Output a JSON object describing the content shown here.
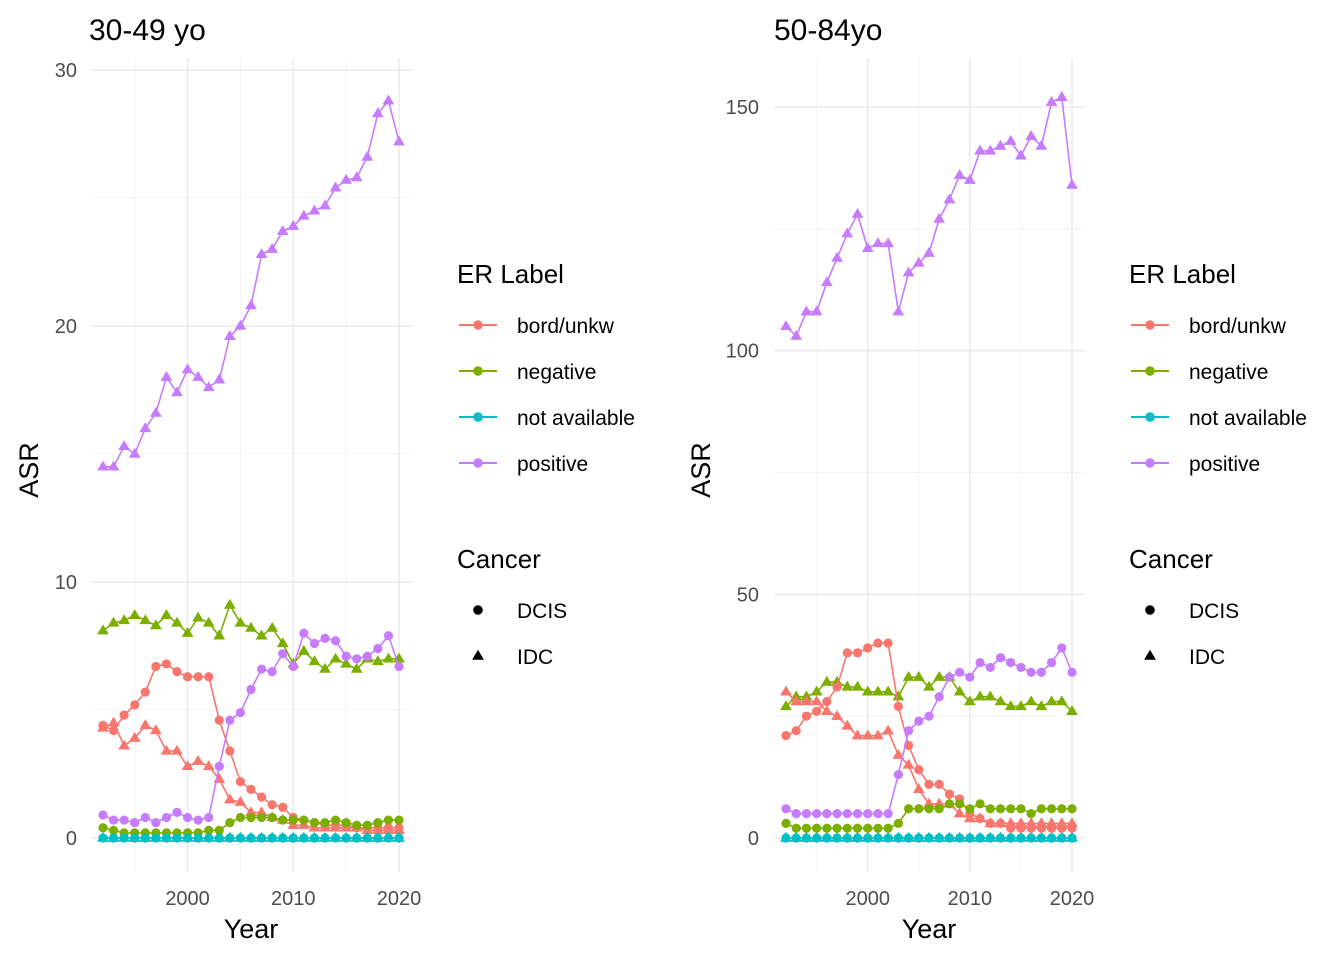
{
  "colors": {
    "bord/unkw": "#F8766D",
    "negative": "#7CAE00",
    "not available": "#00BFC4",
    "positive": "#C77CFF"
  },
  "legend": {
    "er_title": "ER Label",
    "er_items": [
      "bord/unkw",
      "negative",
      "not available",
      "positive"
    ],
    "cancer_title": "Cancer",
    "cancer_items": [
      {
        "label": "DCIS",
        "shape": "circle"
      },
      {
        "label": "IDC",
        "shape": "triangle"
      }
    ]
  },
  "chart_data": [
    {
      "type": "line",
      "title": "30-49 yo",
      "xlabel": "Year",
      "ylabel": "ASR",
      "xlim": [
        1992,
        2020
      ],
      "ylim": [
        0,
        30
      ],
      "xticks": [
        2000,
        2010,
        2020
      ],
      "yticks": [
        0,
        10,
        20,
        30
      ],
      "x": [
        1992,
        1993,
        1994,
        1995,
        1996,
        1997,
        1998,
        1999,
        2000,
        2001,
        2002,
        2003,
        2004,
        2005,
        2006,
        2007,
        2008,
        2009,
        2010,
        2011,
        2012,
        2013,
        2014,
        2015,
        2016,
        2017,
        2018,
        2019,
        2020
      ],
      "series": [
        {
          "er": "positive",
          "cancer": "IDC",
          "values": [
            14.5,
            14.5,
            15.3,
            15.0,
            16.0,
            16.6,
            18.0,
            17.4,
            18.3,
            18.0,
            17.6,
            17.9,
            19.6,
            20.0,
            20.8,
            22.8,
            23.0,
            23.7,
            23.9,
            24.3,
            24.5,
            24.7,
            25.4,
            25.7,
            25.8,
            26.6,
            28.3,
            28.8,
            27.2
          ]
        },
        {
          "er": "negative",
          "cancer": "IDC",
          "values": [
            8.1,
            8.4,
            8.5,
            8.7,
            8.5,
            8.3,
            8.7,
            8.4,
            8.0,
            8.6,
            8.4,
            7.9,
            9.1,
            8.4,
            8.2,
            7.9,
            8.2,
            7.6,
            6.8,
            7.3,
            6.9,
            6.6,
            7.0,
            6.8,
            6.6,
            7.0,
            6.9,
            7.0,
            7.0
          ]
        },
        {
          "er": "bord/unkw",
          "cancer": "IDC",
          "values": [
            4.3,
            4.5,
            3.6,
            3.9,
            4.4,
            4.2,
            3.4,
            3.4,
            2.8,
            3.0,
            2.8,
            2.3,
            1.5,
            1.4,
            1.0,
            1.0,
            0.8,
            0.7,
            0.5,
            0.5,
            0.4,
            0.4,
            0.4,
            0.4,
            0.4,
            0.3,
            0.3,
            0.3,
            0.3
          ]
        },
        {
          "er": "not available",
          "cancer": "IDC",
          "values": [
            0,
            0,
            0,
            0,
            0,
            0,
            0,
            0,
            0,
            0,
            0,
            0,
            0,
            0,
            0,
            0,
            0,
            0,
            0,
            0,
            0,
            0,
            0,
            0,
            0,
            0,
            0,
            0,
            0
          ]
        },
        {
          "er": "bord/unkw",
          "cancer": "DCIS",
          "values": [
            4.4,
            4.2,
            4.8,
            5.2,
            5.7,
            6.7,
            6.8,
            6.5,
            6.3,
            6.3,
            6.3,
            4.6,
            3.4,
            2.2,
            1.9,
            1.6,
            1.3,
            1.2,
            0.8,
            0.7,
            0.6,
            0.5,
            0.5,
            0.5,
            0.4,
            0.4,
            0.4,
            0.4,
            0.4
          ]
        },
        {
          "er": "negative",
          "cancer": "DCIS",
          "values": [
            0.4,
            0.3,
            0.2,
            0.2,
            0.2,
            0.2,
            0.2,
            0.2,
            0.2,
            0.2,
            0.3,
            0.3,
            0.6,
            0.8,
            0.8,
            0.8,
            0.8,
            0.7,
            0.7,
            0.7,
            0.6,
            0.6,
            0.7,
            0.6,
            0.5,
            0.5,
            0.6,
            0.7,
            0.7
          ]
        },
        {
          "er": "positive",
          "cancer": "DCIS",
          "values": [
            0.9,
            0.7,
            0.7,
            0.6,
            0.8,
            0.6,
            0.8,
            1.0,
            0.8,
            0.7,
            0.8,
            2.8,
            4.6,
            4.9,
            5.8,
            6.6,
            6.5,
            7.2,
            6.7,
            8.0,
            7.6,
            7.8,
            7.7,
            7.1,
            7.0,
            7.1,
            7.4,
            7.9,
            6.7
          ]
        },
        {
          "er": "not available",
          "cancer": "DCIS",
          "values": [
            0,
            0,
            0,
            0,
            0,
            0,
            0,
            0,
            0,
            0,
            0,
            0,
            0,
            0,
            0,
            0,
            0,
            0,
            0,
            0,
            0,
            0,
            0,
            0,
            0,
            0,
            0,
            0,
            0
          ]
        }
      ]
    },
    {
      "type": "line",
      "title": "50-84yo",
      "xlabel": "Year",
      "ylabel": "ASR",
      "xlim": [
        1992,
        2020
      ],
      "ylim": [
        0,
        155
      ],
      "xticks": [
        2000,
        2010,
        2020
      ],
      "yticks": [
        0,
        50,
        100,
        150
      ],
      "x": [
        1992,
        1993,
        1994,
        1995,
        1996,
        1997,
        1998,
        1999,
        2000,
        2001,
        2002,
        2003,
        2004,
        2005,
        2006,
        2007,
        2008,
        2009,
        2010,
        2011,
        2012,
        2013,
        2014,
        2015,
        2016,
        2017,
        2018,
        2019,
        2020
      ],
      "series": [
        {
          "er": "positive",
          "cancer": "IDC",
          "values": [
            105,
            103,
            108,
            108,
            114,
            119,
            124,
            128,
            121,
            122,
            122,
            108,
            116,
            118,
            120,
            127,
            131,
            136,
            135,
            141,
            141,
            142,
            143,
            140,
            144,
            142,
            151,
            152,
            134
          ]
        },
        {
          "er": "negative",
          "cancer": "IDC",
          "values": [
            27,
            29,
            29,
            30,
            32,
            32,
            31,
            31,
            30,
            30,
            30,
            29,
            33,
            33,
            31,
            33,
            33,
            30,
            28,
            29,
            29,
            28,
            27,
            27,
            28,
            27,
            28,
            28,
            26
          ]
        },
        {
          "er": "bord/unkw",
          "cancer": "IDC",
          "values": [
            30,
            28,
            28,
            28,
            26,
            25,
            23,
            21,
            21,
            21,
            22,
            17,
            15,
            10,
            7,
            7,
            7,
            5,
            4,
            4,
            3,
            3,
            3,
            3,
            3,
            3,
            3,
            3,
            3
          ]
        },
        {
          "er": "not available",
          "cancer": "IDC",
          "values": [
            0,
            0,
            0,
            0,
            0,
            0,
            0,
            0,
            0,
            0,
            0,
            0,
            0,
            0,
            0,
            0,
            0,
            0,
            0,
            0,
            0,
            0,
            0,
            0,
            0,
            0,
            0,
            0,
            0
          ]
        },
        {
          "er": "bord/unkw",
          "cancer": "DCIS",
          "values": [
            21,
            22,
            25,
            26,
            28,
            31,
            38,
            38,
            39,
            40,
            40,
            27,
            19,
            14,
            11,
            11,
            9,
            8,
            5,
            4,
            3,
            3,
            2,
            2,
            2,
            2,
            2,
            2,
            2
          ]
        },
        {
          "er": "negative",
          "cancer": "DCIS",
          "values": [
            3,
            2,
            2,
            2,
            2,
            2,
            2,
            2,
            2,
            2,
            2,
            3,
            6,
            6,
            6,
            6,
            7,
            7,
            6,
            7,
            6,
            6,
            6,
            6,
            5,
            6,
            6,
            6,
            6
          ]
        },
        {
          "er": "positive",
          "cancer": "DCIS",
          "values": [
            6,
            5,
            5,
            5,
            5,
            5,
            5,
            5,
            5,
            5,
            5,
            13,
            22,
            24,
            25,
            29,
            33,
            34,
            33,
            36,
            35,
            37,
            36,
            35,
            34,
            34,
            36,
            39,
            34
          ]
        },
        {
          "er": "not available",
          "cancer": "DCIS",
          "values": [
            0,
            0,
            0,
            0,
            0,
            0,
            0,
            0,
            0,
            0,
            0,
            0,
            0,
            0,
            0,
            0,
            0,
            0,
            0,
            0,
            0,
            0,
            0,
            0,
            0,
            0,
            0,
            0,
            0
          ]
        }
      ]
    }
  ]
}
